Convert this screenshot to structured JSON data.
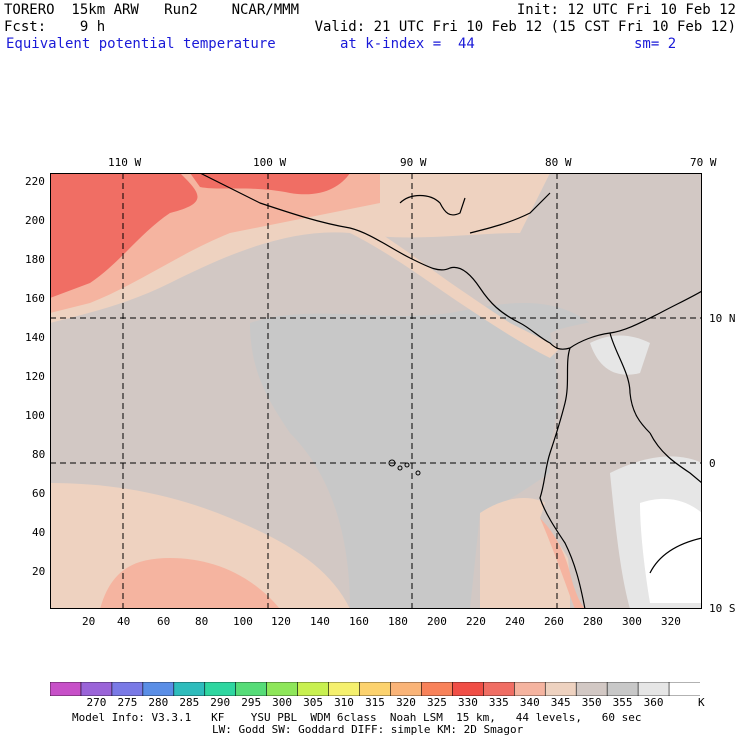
{
  "header": {
    "model": "TORERO  15km ARW   Run2    NCAR/MMM",
    "init": "Init: 12 UTC Fri 10 Feb 12",
    "fcst": "Fcst:    9 h",
    "valid": "Valid: 21 UTC Fri 10 Feb 12 (15 CST Fri 10 Feb 12)",
    "field": "Equivalent potential temperature",
    "level": "at k-index =  44",
    "smooth": "sm= 2"
  },
  "map": {
    "lon_labels": [
      "110 W",
      "100 W",
      "90 W",
      "80 W",
      "70 W"
    ],
    "lat_labels": [
      "10 N",
      "0",
      "10 S"
    ],
    "y_ticks": [
      "220",
      "200",
      "180",
      "160",
      "140",
      "120",
      "100",
      "80",
      "60",
      "40",
      "20"
    ],
    "x_ticks": [
      "20",
      "40",
      "60",
      "80",
      "100",
      "120",
      "140",
      "160",
      "180",
      "200",
      "220",
      "240",
      "260",
      "280",
      "300",
      "320"
    ],
    "grid_x": [
      336,
      113,
      186,
      261
    ],
    "grid_y": [
      76,
      146
    ]
  },
  "colorbar": {
    "labels": [
      "270",
      "275",
      "280",
      "285",
      "290",
      "295",
      "300",
      "305",
      "310",
      "315",
      "320",
      "325",
      "330",
      "335",
      "340",
      "345",
      "350",
      "355",
      "360"
    ],
    "unit": "K",
    "colors": [
      "#c750c8",
      "#9a64d8",
      "#7a7ae6",
      "#5a8ee6",
      "#2ebcbc",
      "#2ed6a0",
      "#56dc78",
      "#8ee65a",
      "#c8f050",
      "#f5f06e",
      "#fcd26e",
      "#fab478",
      "#f8825a",
      "#f04e46",
      "#f06e64",
      "#f5b4a0",
      "#eed2c0",
      "#d2c8c4",
      "#c8c8c8",
      "#e6e6e6",
      "#ffffff"
    ]
  },
  "footer": {
    "line1": "Model Info: V3.3.1   KF    YSU PBL  WDM 6class  Noah LSM  15 km,   44 levels,   60 sec",
    "line2": "LW: Godd SW: Goddard DIFF: simple KM: 2D Smagor"
  }
}
